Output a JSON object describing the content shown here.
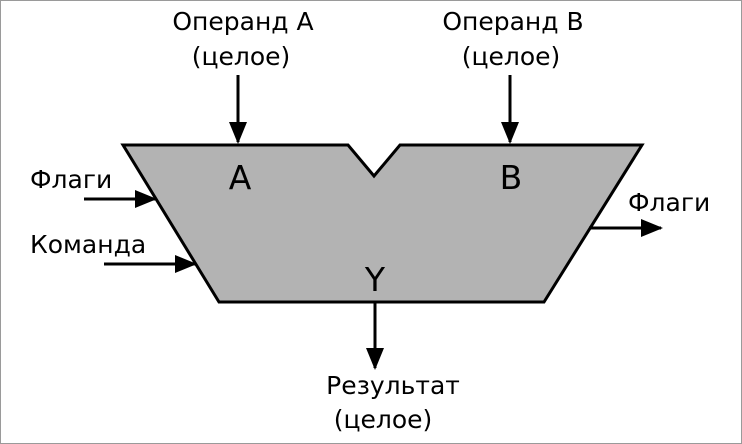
{
  "inputs": {
    "operand_a": {
      "line1": "Операнд A",
      "line2": "(целое)"
    },
    "operand_b": {
      "line1": "Операнд B",
      "line2": "(целое)"
    },
    "flags_in": "Флаги",
    "command": "Команда"
  },
  "alu": {
    "port_a": "A",
    "port_b": "B",
    "port_y": "Y",
    "fill_color": "#b3b3b3",
    "stroke_color": "#000000"
  },
  "outputs": {
    "flags_out": "Флаги",
    "result": {
      "line1": "Результат",
      "line2": "(целое)"
    }
  }
}
